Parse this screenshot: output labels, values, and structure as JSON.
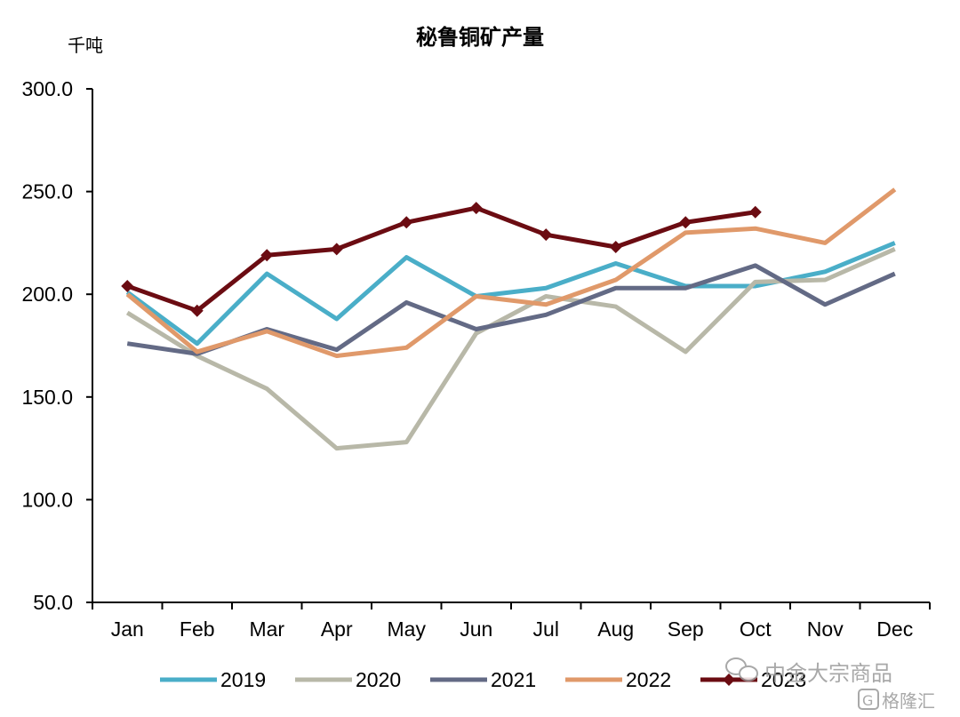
{
  "chart_data": {
    "type": "line",
    "title": "秘鲁铜矿产量",
    "ylabel": "千吨",
    "xlabel": "",
    "ylim": [
      50,
      300
    ],
    "yticks": [
      50,
      100,
      150,
      200,
      250,
      300
    ],
    "ytick_labels": [
      "50.0",
      "100.0",
      "150.0",
      "200.0",
      "250.0",
      "300.0"
    ],
    "categories": [
      "Jan",
      "Feb",
      "Mar",
      "Apr",
      "May",
      "Jun",
      "Jul",
      "Aug",
      "Sep",
      "Oct",
      "Nov",
      "Dec"
    ],
    "legend_position": "bottom",
    "grid": false,
    "series": [
      {
        "name": "2019",
        "color": "#4aaec8",
        "marker": "none",
        "values": [
          201,
          176,
          210,
          188,
          218,
          199,
          203,
          215,
          204,
          204,
          211,
          225
        ]
      },
      {
        "name": "2020",
        "color": "#b8b8a8",
        "marker": "none",
        "values": [
          191,
          170,
          154,
          125,
          128,
          181,
          199,
          194,
          172,
          206,
          207,
          222
        ]
      },
      {
        "name": "2021",
        "color": "#636a85",
        "marker": "none",
        "values": [
          176,
          171,
          183,
          173,
          196,
          183,
          190,
          203,
          203,
          214,
          195,
          210
        ]
      },
      {
        "name": "2022",
        "color": "#e0996a",
        "marker": "none",
        "values": [
          200,
          172,
          182,
          170,
          174,
          199,
          195,
          207,
          230,
          232,
          225,
          251
        ]
      },
      {
        "name": "2023",
        "color": "#6b0c12",
        "marker": "diamond",
        "values": [
          204,
          192,
          219,
          222,
          235,
          242,
          229,
          223,
          235,
          240,
          null,
          null
        ]
      }
    ]
  },
  "watermark": {
    "line1": "中金大宗商品",
    "line2": "格隆汇"
  }
}
